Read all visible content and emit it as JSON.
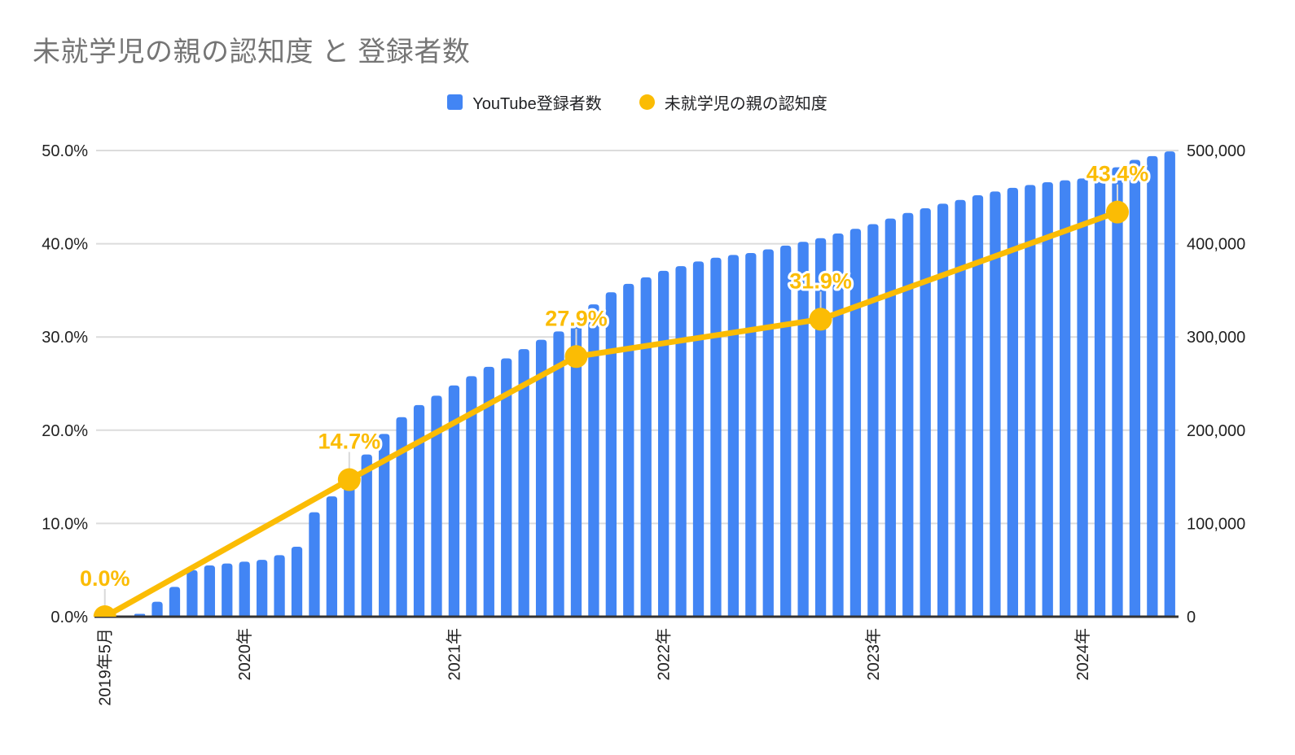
{
  "chart_data": {
    "type": "combo",
    "title": "未就学児の親の認知度 と 登録者数",
    "legend_position": "top",
    "grid": "horizontal",
    "categories_monthly": [
      "2019-05",
      "2019-06",
      "2019-07",
      "2019-08",
      "2019-09",
      "2019-10",
      "2019-11",
      "2019-12",
      "2020-01",
      "2020-02",
      "2020-03",
      "2020-04",
      "2020-05",
      "2020-06",
      "2020-07",
      "2020-08",
      "2020-09",
      "2020-10",
      "2020-11",
      "2020-12",
      "2021-01",
      "2021-02",
      "2021-03",
      "2021-04",
      "2021-05",
      "2021-06",
      "2021-07",
      "2021-08",
      "2021-09",
      "2021-10",
      "2021-11",
      "2021-12",
      "2022-01",
      "2022-02",
      "2022-03",
      "2022-04",
      "2022-05",
      "2022-06",
      "2022-07",
      "2022-08",
      "2022-09",
      "2022-10",
      "2022-11",
      "2022-12",
      "2023-01",
      "2023-02",
      "2023-03",
      "2023-04",
      "2023-05",
      "2023-06",
      "2023-07",
      "2023-08",
      "2023-09",
      "2023-10",
      "2023-11",
      "2023-12",
      "2024-01",
      "2024-02",
      "2024-03",
      "2024-04",
      "2024-05",
      "2024-06"
    ],
    "x_ticks": [
      {
        "index": 0,
        "label": "2019年5月"
      },
      {
        "index": 8,
        "label": "2020年"
      },
      {
        "index": 20,
        "label": "2021年"
      },
      {
        "index": 32,
        "label": "2022年"
      },
      {
        "index": 44,
        "label": "2023年"
      },
      {
        "index": 56,
        "label": "2024年"
      }
    ],
    "bar_series": {
      "name": "YouTube登録者数",
      "axis": "right",
      "values": [
        400,
        1200,
        3000,
        16000,
        32000,
        50000,
        55000,
        57000,
        59000,
        61000,
        66000,
        75000,
        112000,
        129000,
        152000,
        174000,
        196000,
        214000,
        227000,
        237000,
        248000,
        258000,
        268000,
        277000,
        287000,
        297000,
        306000,
        315000,
        335000,
        348000,
        357000,
        364000,
        371000,
        376000,
        381000,
        385000,
        388000,
        390000,
        394000,
        398000,
        402000,
        406000,
        411000,
        416000,
        421000,
        427000,
        433000,
        438000,
        443000,
        447000,
        452000,
        456000,
        460000,
        463000,
        466000,
        468000,
        470000,
        473000,
        482000,
        490000,
        494000,
        499000
      ]
    },
    "line_series": {
      "name": "未就学児の親の認知度",
      "axis": "left",
      "points": [
        {
          "month": "2019-05",
          "index": 0,
          "value": 0.0,
          "label": "0.0%"
        },
        {
          "month": "2020-07",
          "index": 14,
          "value": 14.7,
          "label": "14.7%"
        },
        {
          "month": "2021-08",
          "index": 27,
          "value": 27.9,
          "label": "27.9%"
        },
        {
          "month": "2022-10",
          "index": 41,
          "value": 31.9,
          "label": "31.9%"
        },
        {
          "month": "2024-03",
          "index": 58,
          "value": 43.4,
          "label": "43.4%"
        }
      ]
    },
    "left_axis": {
      "min": 0,
      "max": 50,
      "unit": "%",
      "ticks": [
        "0.0%",
        "10.0%",
        "20.0%",
        "30.0%",
        "40.0%",
        "50.0%"
      ]
    },
    "right_axis": {
      "min": 0,
      "max": 500000,
      "ticks": [
        "0",
        "100,000",
        "200,000",
        "300,000",
        "400,000",
        "500,000"
      ]
    },
    "colors": {
      "bar": "#4285F4",
      "line": "#FBBC04",
      "grid": "#dcdcdc",
      "axis": "#333333",
      "tick_text": "#212121",
      "title": "#757575",
      "leader": "#d9d9d9",
      "legend_text": "#202124"
    }
  }
}
